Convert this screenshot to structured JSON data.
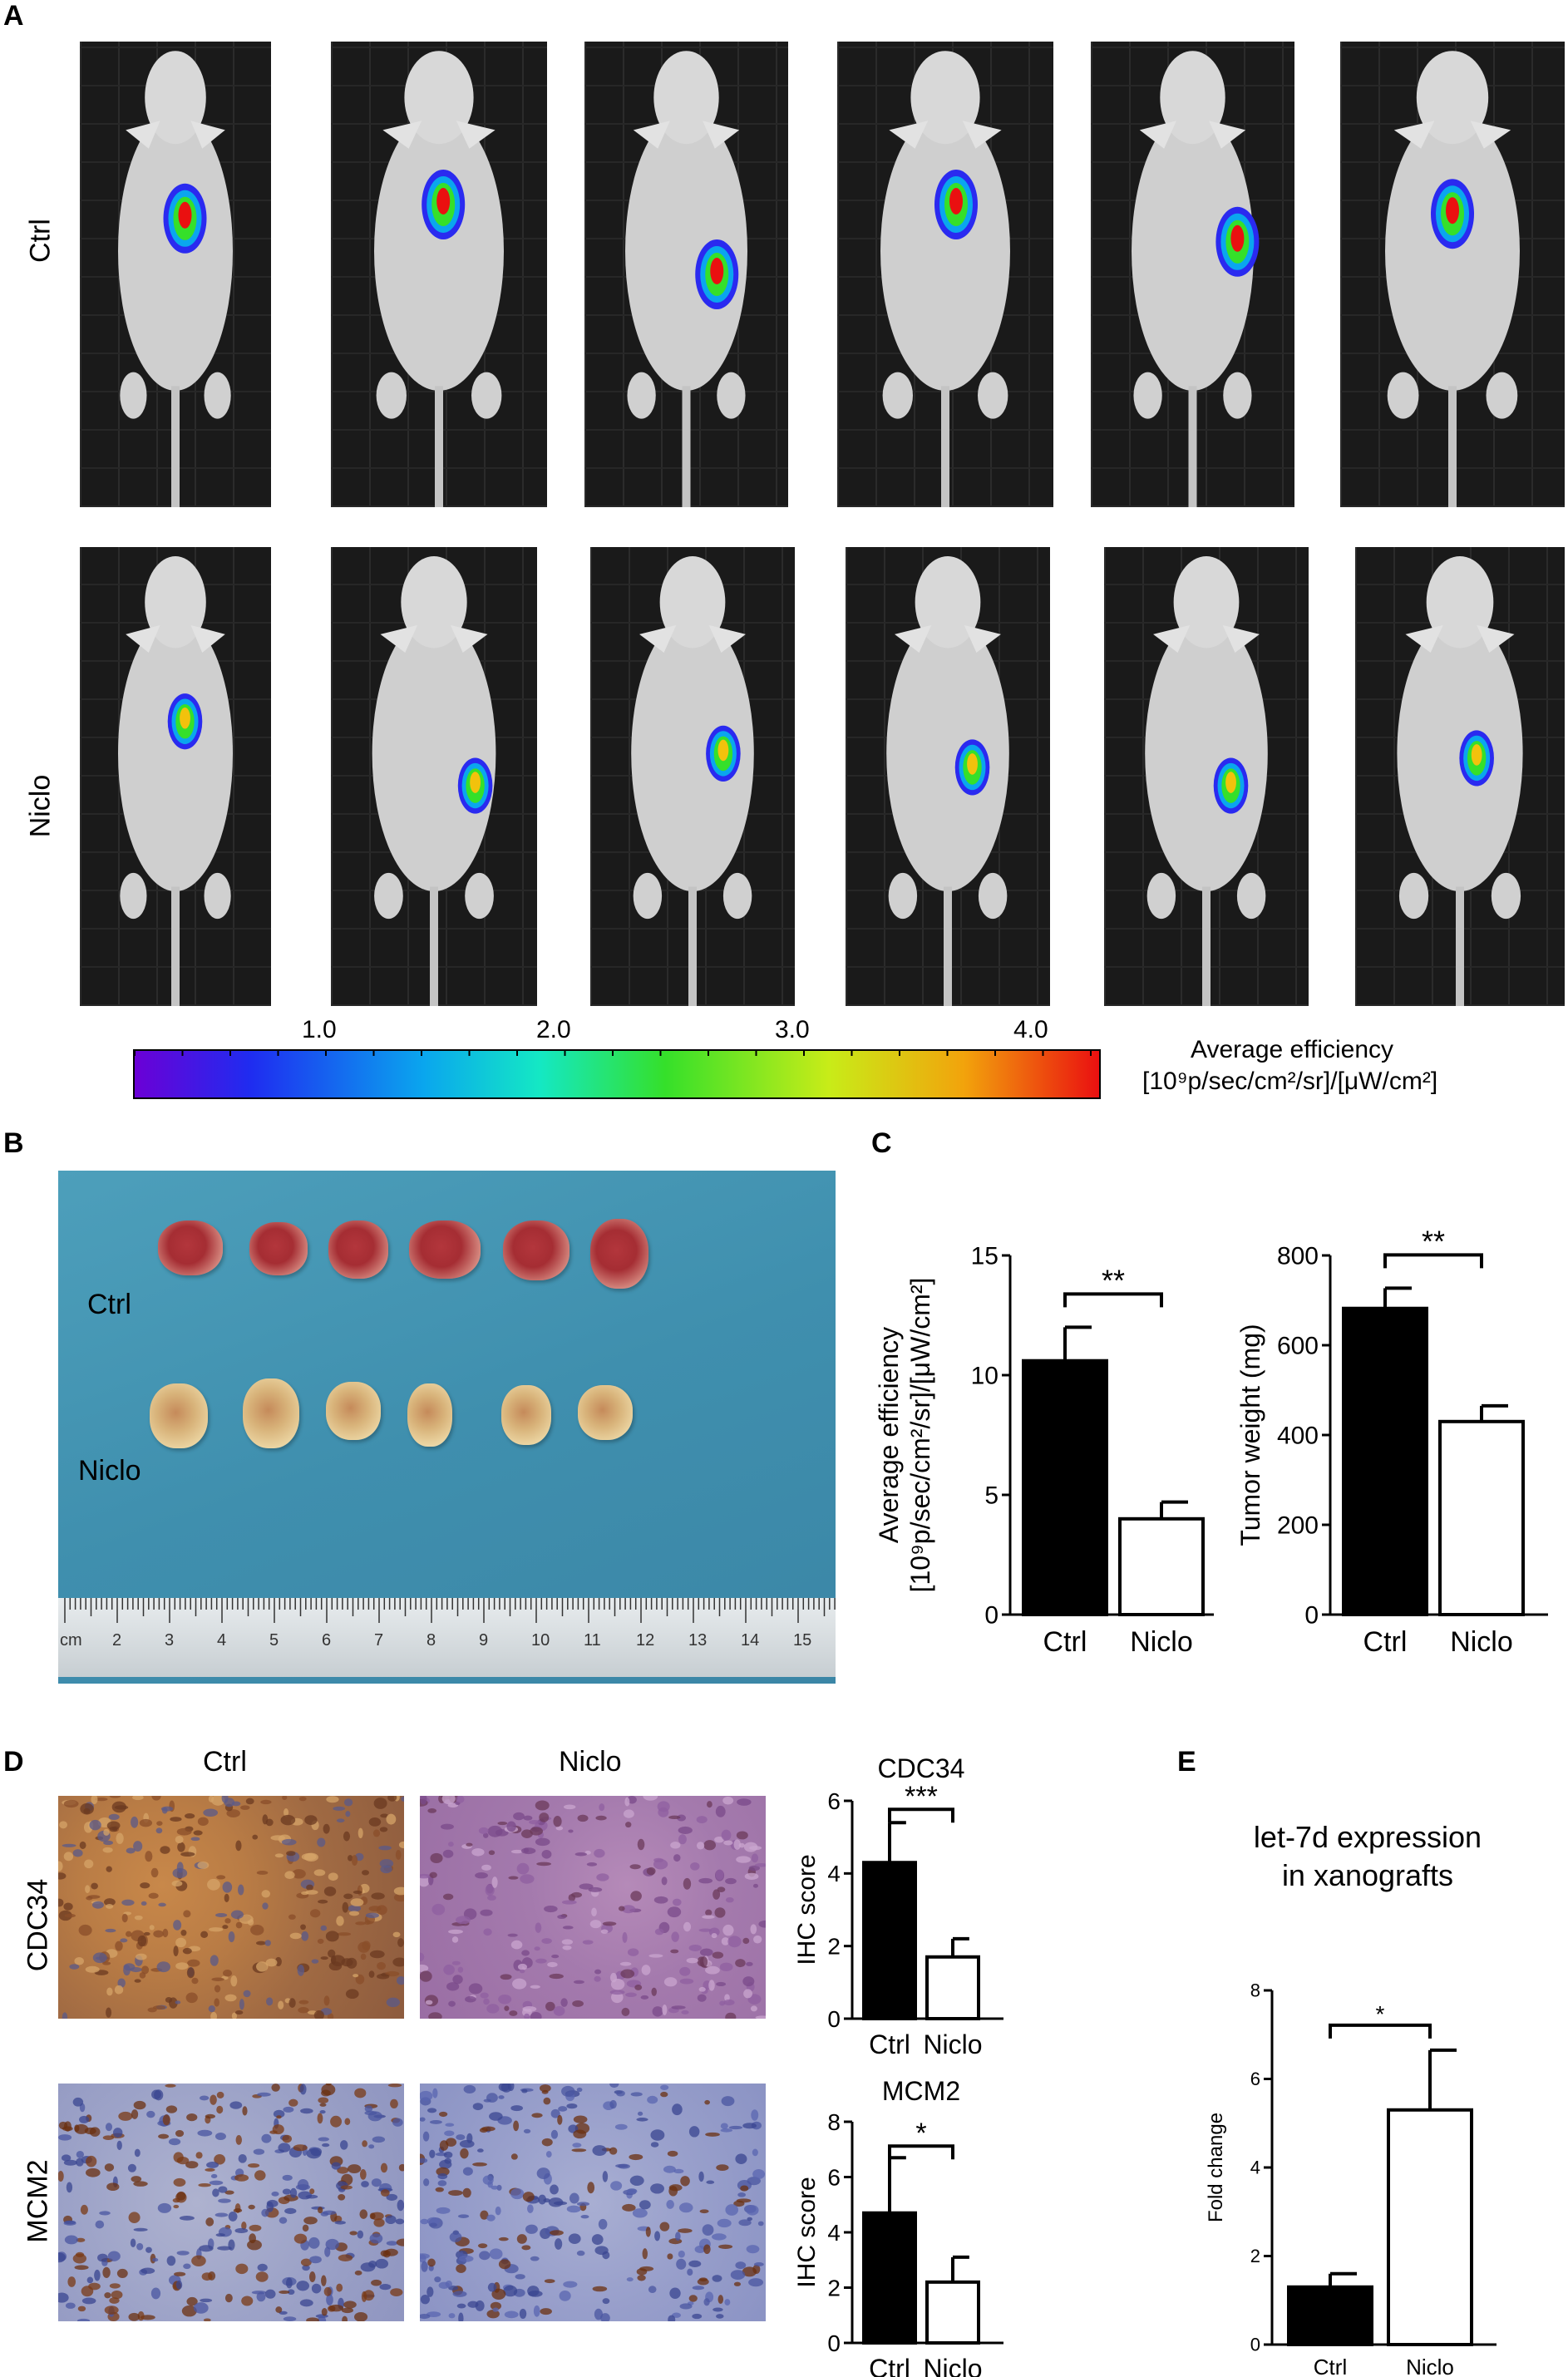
{
  "panels": {
    "A": {
      "letter": "A",
      "rows": [
        "Ctrl",
        "Niclo"
      ],
      "colorbar": {
        "ticks": [
          "1.0",
          "2.0",
          "3.0",
          "4.0"
        ],
        "label_line1": "Average efficiency",
        "label_line2": "[10⁹p/sec/cm²/sr]/[μW/cm²]"
      }
    },
    "B": {
      "letter": "B",
      "rows": [
        "Ctrl",
        "Niclo"
      ],
      "ruler_labels": [
        "cm",
        "2",
        "3",
        "4",
        "5",
        "6",
        "7",
        "8",
        "9",
        "10",
        "11",
        "12",
        "13",
        "14",
        "15"
      ]
    },
    "C": {
      "letter": "C"
    },
    "D": {
      "letter": "D",
      "cols": [
        "Ctrl",
        "Niclo"
      ],
      "rows": [
        "CDC34",
        "MCM2"
      ]
    },
    "E": {
      "letter": "E"
    }
  },
  "chart_data": [
    {
      "id": "C-efficiency",
      "type": "bar",
      "categories": [
        "Ctrl",
        "Niclo"
      ],
      "values": [
        10.6,
        4.0
      ],
      "errors": [
        1.4,
        0.7
      ],
      "fills": [
        "#000000",
        "#ffffff"
      ],
      "ylabel_line1": "Average efficiency",
      "ylabel_line2": "[10⁹p/sec/cm²/sr]/[μW/cm²]",
      "ylim": [
        0,
        15
      ],
      "yticks": [
        0,
        5,
        10,
        15
      ],
      "significance": "**"
    },
    {
      "id": "C-weight",
      "type": "bar",
      "categories": [
        "Ctrl",
        "Niclo"
      ],
      "values": [
        682,
        430
      ],
      "errors": [
        45,
        35
      ],
      "fills": [
        "#000000",
        "#ffffff"
      ],
      "ylabel_line1": "Tumor weight (mg)",
      "ylim": [
        0,
        800
      ],
      "yticks": [
        0,
        200,
        400,
        600,
        800
      ],
      "significance": "**"
    },
    {
      "id": "D-cdc34",
      "type": "bar",
      "title": "CDC34",
      "categories": [
        "Ctrl",
        "Niclo"
      ],
      "values": [
        4.3,
        1.7
      ],
      "errors": [
        1.1,
        0.5
      ],
      "fills": [
        "#000000",
        "#ffffff"
      ],
      "ylabel_line1": "IHC score",
      "ylim": [
        0,
        6
      ],
      "yticks": [
        0,
        2,
        4,
        6
      ],
      "significance": "***"
    },
    {
      "id": "D-mcm2",
      "type": "bar",
      "title": "MCM2",
      "categories": [
        "Ctrl",
        "Niclo"
      ],
      "values": [
        4.7,
        2.2
      ],
      "errors": [
        2.0,
        0.9
      ],
      "fills": [
        "#000000",
        "#ffffff"
      ],
      "ylabel_line1": "IHC score",
      "ylim": [
        0,
        8
      ],
      "yticks": [
        0,
        2,
        4,
        6,
        8
      ],
      "significance": "*"
    },
    {
      "id": "E-let7d",
      "type": "bar",
      "title_line1": "let-7d expression",
      "title_line2": "in xanografts",
      "categories": [
        "Ctrl",
        "Niclo"
      ],
      "values": [
        1.3,
        5.3
      ],
      "errors": [
        0.3,
        1.35
      ],
      "fills": [
        "#000000",
        "#ffffff"
      ],
      "ylabel_line1": "Fold change",
      "ylim": [
        0,
        8
      ],
      "yticks": [
        0,
        2,
        4,
        6,
        8
      ],
      "significance": "*"
    }
  ]
}
